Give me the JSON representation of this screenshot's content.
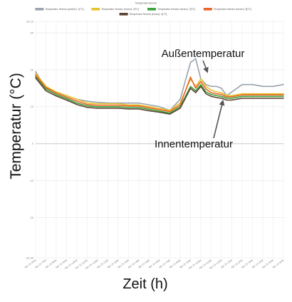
{
  "chart_data": {
    "type": "line",
    "title": "Temperatur Sensor",
    "xlabel": "Zeit (h)",
    "ylabel": "Temperatur (°C)",
    "ylim": [
      -30.9,
      33.1
    ],
    "y_ticks": [
      {
        "value": 33.1,
        "label": "33.10"
      },
      {
        "value": 30,
        "label": "30"
      },
      {
        "value": 20,
        "label": "20"
      },
      {
        "value": 10,
        "label": "10"
      },
      {
        "value": 0,
        "label": "0"
      },
      {
        "value": -10,
        "label": "-10"
      },
      {
        "value": -20,
        "label": "-20"
      },
      {
        "value": -30.9,
        "label": "-30.90"
      }
    ],
    "x_ticks": [
      "Apr 23 6PM",
      "Apr 23 7PM",
      "Apr 23 8PM",
      "Apr 23 9PM",
      "Apr 23 10PM",
      "Apr 23 11PM",
      "Apr 24 12AM",
      "Apr 24 1AM",
      "Apr 24 2AM",
      "Apr 24 3AM",
      "Apr 24 4AM",
      "Apr 24 5AM",
      "Apr 24 6AM",
      "Apr 24 7AM",
      "Apr 24 8AM",
      "Apr 24 9AM",
      "Apr 24 10AM",
      "Apr 24 11AM",
      "Apr 24 12PM",
      "Apr 24 1PM",
      "Apr 24 2PM",
      "Apr 24 3PM",
      "Apr 24 4PM",
      "Apr 24 5PM",
      "Apr 24 6PM"
    ],
    "x": [
      0,
      1,
      2,
      3,
      4,
      5,
      6,
      7,
      8,
      9,
      10,
      11,
      12,
      13,
      14,
      15,
      15.5,
      16,
      16.5,
      17,
      17.5,
      18,
      18.5,
      19,
      20,
      21,
      22,
      23,
      24
    ],
    "grid": true,
    "legend_position": "top",
    "series": [
      {
        "name": "Temperatur Sensor (außen): 1[°C]",
        "color": "#9aa3ae",
        "values": [
          19.5,
          15,
          14,
          13,
          12,
          11.5,
          11.2,
          11,
          11,
          11,
          11,
          10.5,
          10,
          9,
          12,
          22,
          23,
          17.5,
          16,
          15.5,
          15.5,
          15,
          13,
          14,
          16,
          16,
          15.5,
          15.5,
          16
        ]
      },
      {
        "name": "Temperatur Sensor (innen): 2[°C]",
        "color": "#e8c22c",
        "values": [
          19,
          15.5,
          14,
          13,
          12,
          11,
          10.8,
          10.8,
          10.8,
          10.5,
          10.5,
          10,
          9.5,
          9,
          11,
          17.5,
          15.5,
          17.5,
          15.5,
          14.5,
          14,
          13.8,
          13,
          13,
          13.5,
          13.5,
          13.5,
          13.5,
          13.5
        ]
      },
      {
        "name": "Temperatur Sensor (innen): 3[°C]",
        "color": "#3aa33a",
        "values": [
          18.2,
          14.8,
          13.3,
          12.2,
          11,
          10.2,
          10,
          10,
          10,
          9.8,
          9.8,
          9.3,
          8.8,
          8.3,
          10,
          15.5,
          14.3,
          16,
          14,
          13.3,
          13,
          12.8,
          12.3,
          12.3,
          12.8,
          12.8,
          12.8,
          12.8,
          12.8
        ]
      },
      {
        "name": "Temperatur Sensor (innen): 5[°C]",
        "color": "#e8642b",
        "values": [
          18.6,
          15.2,
          13.7,
          12.6,
          11.5,
          10.6,
          10.4,
          10.4,
          10.4,
          10.2,
          10.2,
          9.7,
          9.2,
          8.7,
          10.5,
          18,
          15,
          16.8,
          14.8,
          13.8,
          13.5,
          13.3,
          12.7,
          12.7,
          13.2,
          13.2,
          13.2,
          13.2,
          13.2
        ]
      },
      {
        "name": "Temperatur Sensor (innen): 4[°C]",
        "color": "#5e4332",
        "values": [
          17.8,
          14.3,
          12.9,
          11.8,
          10.6,
          9.8,
          9.6,
          9.6,
          9.6,
          9.4,
          9.4,
          8.9,
          8.5,
          8,
          9.6,
          15,
          13.8,
          15.5,
          13.5,
          12.8,
          12.5,
          12.3,
          11.8,
          11.8,
          12.3,
          12.3,
          12.3,
          12.3,
          12.3
        ]
      }
    ],
    "annotations": [
      {
        "text": "Außentemperatur",
        "target_x": 16.5,
        "target_y": 19
      },
      {
        "text": "Innentemperatur",
        "target_x": 18,
        "target_y": 12
      }
    ]
  }
}
